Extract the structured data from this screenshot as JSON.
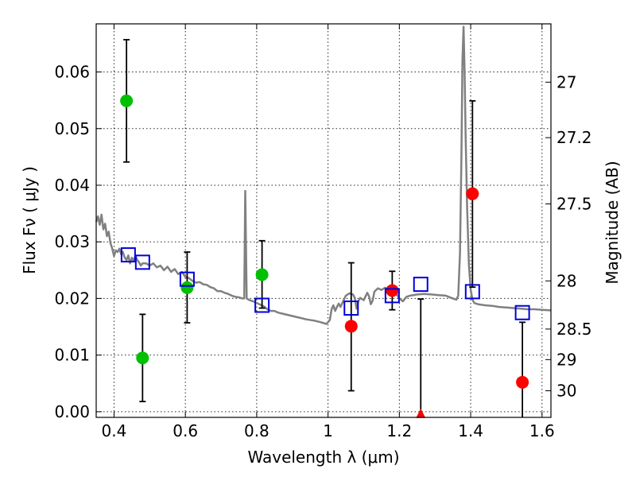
{
  "chart_data": {
    "type": "scatter",
    "xlabel": "Wavelength  λ (μm)",
    "ylabel": "Flux  Fν  ( μJy )",
    "ylabel_right": "Magnitude (AB)",
    "xlim": [
      0.35,
      1.625
    ],
    "ylim": [
      -0.001,
      0.0685
    ],
    "x_ticks": [
      0.4,
      0.6,
      0.8,
      1.0,
      1.2,
      1.4,
      1.6
    ],
    "x_tick_labels": [
      "0.4",
      "0.6",
      "0.8",
      "1",
      "1.2",
      "1.4",
      "1.6"
    ],
    "y_ticks": [
      0.0,
      0.01,
      0.02,
      0.03,
      0.04,
      0.05,
      0.06
    ],
    "y_tick_labels": [
      "0.00",
      "0.01",
      "0.02",
      "0.03",
      "0.04",
      "0.05",
      "0.06"
    ],
    "right_ticks": [
      {
        "label": "27",
        "flux": 0.0582
      },
      {
        "label": "27.2",
        "flux": 0.0484
      },
      {
        "label": "27.5",
        "flux": 0.0367
      },
      {
        "label": "28",
        "flux": 0.0231
      },
      {
        "label": "28.5",
        "flux": 0.0146
      },
      {
        "label": "29",
        "flux": 0.0092
      },
      {
        "label": "30",
        "flux": 0.0037
      }
    ],
    "grid": true,
    "colors": {
      "green": "#00c000",
      "red": "#ff0000",
      "blue": "#0000dd",
      "model": "#808080",
      "errorbar": "#000000"
    },
    "series": [
      {
        "name": "green-points",
        "marker": "circle",
        "color": "#00c000",
        "points": [
          {
            "x": 0.435,
            "y": 0.0549,
            "lo": 0.0441,
            "hi": 0.0657
          },
          {
            "x": 0.48,
            "y": 0.0095,
            "lo": 0.0018,
            "hi": 0.0172
          },
          {
            "x": 0.605,
            "y": 0.0219,
            "lo": 0.0157,
            "hi": 0.0282
          },
          {
            "x": 0.815,
            "y": 0.0242,
            "lo": 0.0183,
            "hi": 0.0302
          }
        ]
      },
      {
        "name": "red-points",
        "marker": "circle",
        "color": "#ff0000",
        "points": [
          {
            "x": 1.065,
            "y": 0.0151,
            "lo": 0.0037,
            "hi": 0.0263
          },
          {
            "x": 1.18,
            "y": 0.0214,
            "lo": 0.018,
            "hi": 0.0248
          },
          {
            "x": 1.405,
            "y": 0.0385,
            "lo": 0.022,
            "hi": 0.0549
          },
          {
            "x": 1.545,
            "y": 0.0052,
            "lo": -0.001,
            "hi": 0.0158
          }
        ]
      },
      {
        "name": "red-upper-limit",
        "marker": "triangle",
        "color": "#ff0000",
        "points": [
          {
            "x": 1.26,
            "y": -0.0004,
            "lo": -0.001,
            "hi": 0.0199
          }
        ]
      },
      {
        "name": "model-photometry",
        "marker": "open-square",
        "color": "#0000dd",
        "points": [
          {
            "x": 0.44,
            "y": 0.0277
          },
          {
            "x": 0.48,
            "y": 0.0264
          },
          {
            "x": 0.605,
            "y": 0.0234
          },
          {
            "x": 0.815,
            "y": 0.0188
          },
          {
            "x": 1.065,
            "y": 0.0183
          },
          {
            "x": 1.18,
            "y": 0.0205
          },
          {
            "x": 1.26,
            "y": 0.0225
          },
          {
            "x": 1.405,
            "y": 0.0212
          },
          {
            "x": 1.545,
            "y": 0.0175
          }
        ]
      }
    ],
    "model_spectrum": {
      "name": "SED model",
      "color": "#808080",
      "points": [
        [
          0.35,
          0.0335
        ],
        [
          0.355,
          0.0345
        ],
        [
          0.36,
          0.033
        ],
        [
          0.365,
          0.0348
        ],
        [
          0.37,
          0.0322
        ],
        [
          0.375,
          0.0332
        ],
        [
          0.38,
          0.031
        ],
        [
          0.385,
          0.0318
        ],
        [
          0.39,
          0.0298
        ],
        [
          0.395,
          0.0288
        ],
        [
          0.4,
          0.0275
        ],
        [
          0.405,
          0.0285
        ],
        [
          0.41,
          0.0282
        ],
        [
          0.415,
          0.0288
        ],
        [
          0.42,
          0.0278
        ],
        [
          0.425,
          0.0282
        ],
        [
          0.43,
          0.0272
        ],
        [
          0.435,
          0.0268
        ],
        [
          0.44,
          0.0276
        ],
        [
          0.445,
          0.0262
        ],
        [
          0.45,
          0.0272
        ],
        [
          0.455,
          0.0266
        ],
        [
          0.46,
          0.0275
        ],
        [
          0.465,
          0.0268
        ],
        [
          0.47,
          0.0264
        ],
        [
          0.475,
          0.0258
        ],
        [
          0.48,
          0.0262
        ],
        [
          0.49,
          0.0262
        ],
        [
          0.5,
          0.0258
        ],
        [
          0.51,
          0.0262
        ],
        [
          0.52,
          0.0255
        ],
        [
          0.53,
          0.0258
        ],
        [
          0.54,
          0.025
        ],
        [
          0.55,
          0.0256
        ],
        [
          0.56,
          0.0247
        ],
        [
          0.57,
          0.0252
        ],
        [
          0.58,
          0.0243
        ],
        [
          0.59,
          0.0247
        ],
        [
          0.6,
          0.0238
        ],
        [
          0.61,
          0.0236
        ],
        [
          0.62,
          0.0231
        ],
        [
          0.63,
          0.0228
        ],
        [
          0.64,
          0.0229
        ],
        [
          0.65,
          0.0225
        ],
        [
          0.66,
          0.0224
        ],
        [
          0.67,
          0.022
        ],
        [
          0.68,
          0.0218
        ],
        [
          0.69,
          0.0213
        ],
        [
          0.7,
          0.0213
        ],
        [
          0.71,
          0.021
        ],
        [
          0.72,
          0.0208
        ],
        [
          0.73,
          0.0205
        ],
        [
          0.74,
          0.0203
        ],
        [
          0.75,
          0.0202
        ],
        [
          0.76,
          0.02
        ],
        [
          0.765,
          0.02
        ],
        [
          0.768,
          0.039
        ],
        [
          0.772,
          0.02
        ],
        [
          0.78,
          0.0197
        ],
        [
          0.79,
          0.0195
        ],
        [
          0.8,
          0.0192
        ],
        [
          0.81,
          0.0189
        ],
        [
          0.82,
          0.0186
        ],
        [
          0.83,
          0.0181
        ],
        [
          0.84,
          0.0178
        ],
        [
          0.85,
          0.0178
        ],
        [
          0.86,
          0.0175
        ],
        [
          0.88,
          0.0172
        ],
        [
          0.9,
          0.0169
        ],
        [
          0.92,
          0.0166
        ],
        [
          0.94,
          0.0163
        ],
        [
          0.96,
          0.0161
        ],
        [
          0.98,
          0.0158
        ],
        [
          0.995,
          0.0155
        ],
        [
          1.0,
          0.0158
        ],
        [
          1.005,
          0.0162
        ],
        [
          1.01,
          0.0181
        ],
        [
          1.015,
          0.0188
        ],
        [
          1.02,
          0.0178
        ],
        [
          1.025,
          0.0185
        ],
        [
          1.03,
          0.0191
        ],
        [
          1.035,
          0.0185
        ],
        [
          1.04,
          0.0192
        ],
        [
          1.05,
          0.0205
        ],
        [
          1.06,
          0.0209
        ],
        [
          1.07,
          0.0207
        ],
        [
          1.075,
          0.0201
        ],
        [
          1.08,
          0.0182
        ],
        [
          1.085,
          0.0195
        ],
        [
          1.09,
          0.0201
        ],
        [
          1.1,
          0.0197
        ],
        [
          1.11,
          0.021
        ],
        [
          1.115,
          0.0204
        ],
        [
          1.12,
          0.019
        ],
        [
          1.125,
          0.0196
        ],
        [
          1.13,
          0.0212
        ],
        [
          1.14,
          0.0218
        ],
        [
          1.15,
          0.0215
        ],
        [
          1.16,
          0.0219
        ],
        [
          1.17,
          0.0214
        ],
        [
          1.18,
          0.0215
        ],
        [
          1.19,
          0.021
        ],
        [
          1.2,
          0.02
        ],
        [
          1.21,
          0.0195
        ],
        [
          1.22,
          0.0203
        ],
        [
          1.23,
          0.0205
        ],
        [
          1.25,
          0.0207
        ],
        [
          1.27,
          0.0208
        ],
        [
          1.29,
          0.0207
        ],
        [
          1.31,
          0.0206
        ],
        [
          1.33,
          0.0205
        ],
        [
          1.35,
          0.02
        ],
        [
          1.36,
          0.0198
        ],
        [
          1.365,
          0.0205
        ],
        [
          1.37,
          0.028
        ],
        [
          1.374,
          0.045
        ],
        [
          1.377,
          0.062
        ],
        [
          1.38,
          0.068
        ],
        [
          1.383,
          0.06
        ],
        [
          1.386,
          0.048
        ],
        [
          1.39,
          0.036
        ],
        [
          1.395,
          0.026
        ],
        [
          1.4,
          0.0215
        ],
        [
          1.405,
          0.0198
        ],
        [
          1.41,
          0.0192
        ],
        [
          1.42,
          0.019
        ],
        [
          1.44,
          0.0188
        ],
        [
          1.46,
          0.0187
        ],
        [
          1.48,
          0.0185
        ],
        [
          1.5,
          0.0184
        ],
        [
          1.52,
          0.0183
        ],
        [
          1.54,
          0.0182
        ],
        [
          1.56,
          0.0181
        ],
        [
          1.58,
          0.0181
        ],
        [
          1.6,
          0.018
        ],
        [
          1.625,
          0.0179
        ]
      ]
    }
  }
}
